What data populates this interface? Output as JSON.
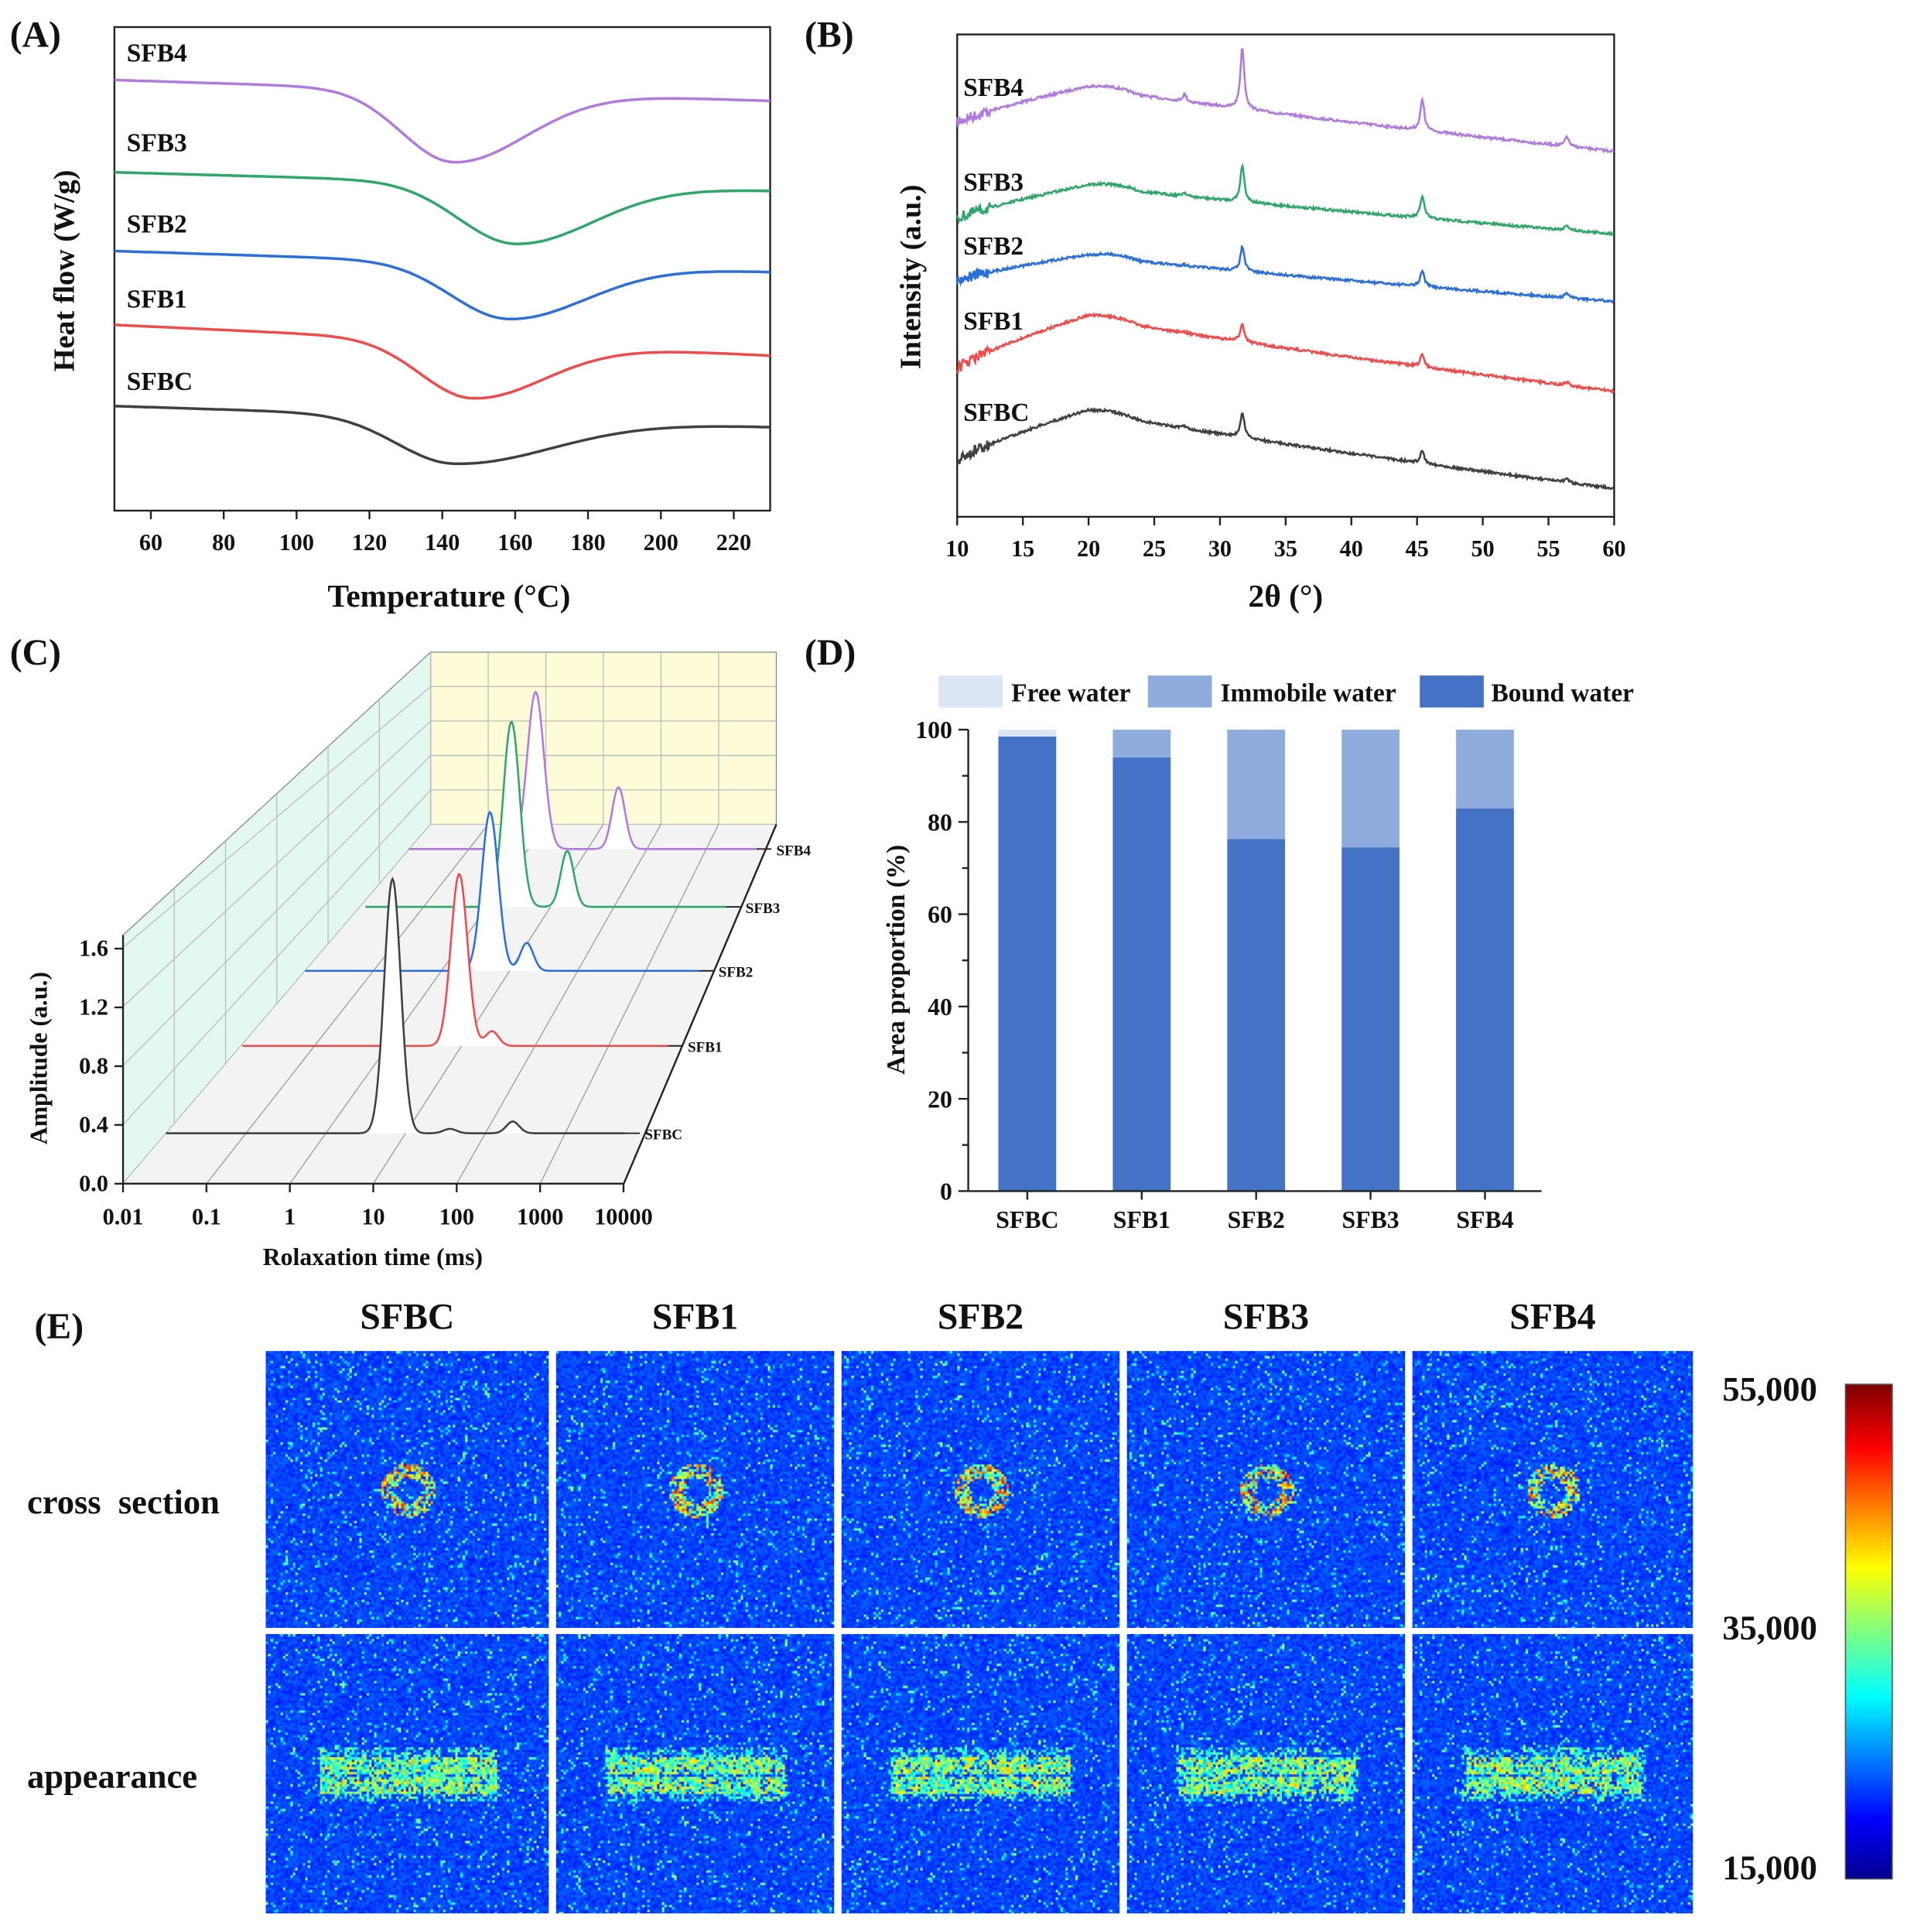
{
  "panel_labels": {
    "a": "(A)",
    "b": "(B)",
    "c": "(C)",
    "d": "(D)",
    "e": "(E)"
  },
  "colors": {
    "SFBC": "#404040",
    "SFB1": "#f04a4a",
    "SFB2": "#2a6fdc",
    "SFB3": "#2ea86a",
    "SFB4": "#b07ae0",
    "free": "#dbe5f6",
    "immobile": "#8eadde",
    "bound": "#4472c4"
  },
  "chart_data": [
    {
      "id": "A",
      "type": "line",
      "xlabel": "Temperature (°C)",
      "ylabel": "Heat flow (W/g)",
      "xlim": [
        50,
        230
      ],
      "xticks": [
        60,
        80,
        100,
        120,
        140,
        160,
        180,
        200,
        220
      ],
      "series": [
        {
          "name": "SFB4",
          "peak_temp": 143
        },
        {
          "name": "SFB3",
          "peak_temp": 160
        },
        {
          "name": "SFB2",
          "peak_temp": 158
        },
        {
          "name": "SFB1",
          "peak_temp": 148
        },
        {
          "name": "SFBC",
          "peak_temp": 143
        }
      ]
    },
    {
      "id": "B",
      "type": "line",
      "xlabel": "2θ (°)",
      "ylabel": "Intensity (a.u.)",
      "xlim": [
        10,
        60
      ],
      "xticks": [
        10,
        15,
        20,
        25,
        30,
        35,
        40,
        45,
        50,
        55,
        60
      ],
      "peak_positions": [
        27.3,
        31.7,
        45.4,
        56.4
      ],
      "series": [
        {
          "name": "SFB4"
        },
        {
          "name": "SFB3"
        },
        {
          "name": "SFB2"
        },
        {
          "name": "SFB1"
        },
        {
          "name": "SFBC"
        }
      ]
    },
    {
      "id": "C",
      "type": "line",
      "xlabel": "Rolaxation time (ms)",
      "ylabel": "Amplitude (a.u.)",
      "xscale": "log",
      "xlim": [
        0.01,
        10000
      ],
      "xticks": [
        "0.01",
        "0.1",
        "1",
        "10",
        "100",
        "1000",
        "10000"
      ],
      "ylim": [
        0,
        1.6
      ],
      "yticks": [
        "0.0",
        "0.4",
        "0.8",
        "1.2",
        "1.6"
      ],
      "series": [
        {
          "name": "SFB4",
          "peaks": [
            {
              "t": 15,
              "amp": 1.07
            },
            {
              "t": 148,
              "amp": 0.42
            }
          ]
        },
        {
          "name": "SFB3",
          "peaks": [
            {
              "t": 18,
              "amp": 1.26
            },
            {
              "t": 84,
              "amp": 0.38
            }
          ]
        },
        {
          "name": "SFB2",
          "peaks": [
            {
              "t": 21,
              "amp": 1.08
            },
            {
              "t": 58,
              "amp": 0.19
            }
          ]
        },
        {
          "name": "SFB1",
          "peaks": [
            {
              "t": 21,
              "amp": 1.17
            },
            {
              "t": 52,
              "amp": 0.1
            }
          ]
        },
        {
          "name": "SFBC",
          "peaks": [
            {
              "t": 17,
              "amp": 1.73
            },
            {
              "t": 83,
              "amp": 0.03
            },
            {
              "t": 470,
              "amp": 0.08
            }
          ]
        }
      ]
    },
    {
      "id": "D",
      "type": "bar",
      "stacked": true,
      "ylabel": "Area proportion (%)",
      "ylim": [
        0,
        100
      ],
      "yticks": [
        "0",
        "20",
        "40",
        "60",
        "80",
        "100"
      ],
      "categories": [
        "SFBC",
        "SFB1",
        "SFB2",
        "SFB3",
        "SFB4"
      ],
      "legend_position": "top",
      "series": [
        {
          "name": "Free water",
          "values": [
            1.5,
            0,
            0,
            0,
            0
          ]
        },
        {
          "name": "Immobile water",
          "values": [
            0,
            6,
            23.7,
            25.5,
            17.1
          ]
        },
        {
          "name": "Bound water",
          "values": [
            98.5,
            94,
            76.3,
            74.5,
            82.9
          ]
        }
      ]
    },
    {
      "id": "E",
      "type": "heatmap",
      "columns": [
        "SFBC",
        "SFB1",
        "SFB2",
        "SFB3",
        "SFB4"
      ],
      "rows": [
        "cross  section",
        "appearance"
      ],
      "colorbar": {
        "max": "55,000",
        "mid": "35,000",
        "min": "15,000",
        "range": [
          15000,
          55000
        ]
      }
    }
  ]
}
